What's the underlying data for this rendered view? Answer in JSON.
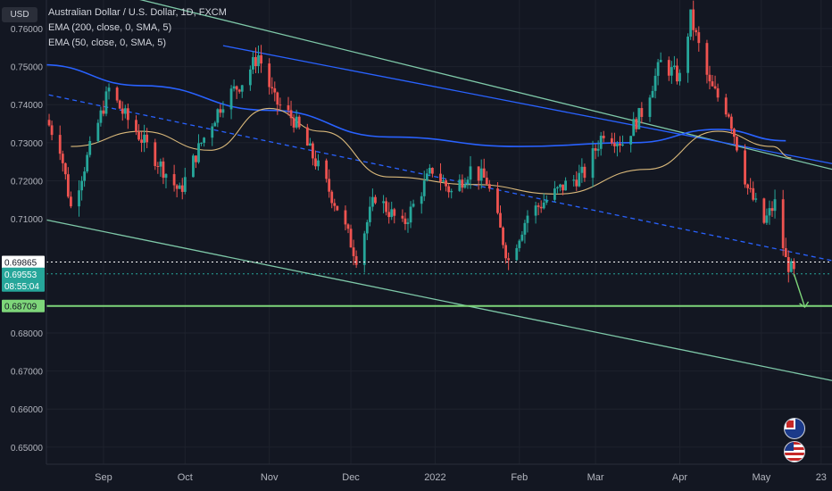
{
  "chart_title": "Australian Dollar / U.S. Dollar, 1D, FXCM",
  "indicators": {
    "ema200": "EMA (200, close, 0, SMA, 5)",
    "ema50": "EMA (50, close, 0, SMA, 5)"
  },
  "unit_badge": "USD",
  "price_tags": {
    "level1": "0.69865",
    "current": "0.69553",
    "countdown": "08:55:04",
    "support": "0.68709"
  },
  "colors": {
    "background": "#131722",
    "up": "#26a69a",
    "down": "#ef5350",
    "ema200": "#2962ff",
    "ema50": "#d9b87a",
    "channel": "#7ec8a8",
    "support_line": "#7ed67a",
    "axis_text": "#b2b5be",
    "grid": "#1e222d"
  },
  "chart_data": {
    "type": "candlestick",
    "title": "Australian Dollar / U.S. Dollar, 1D, FXCM",
    "x_ticks": [
      "Sep",
      "Oct",
      "Nov",
      "Dec",
      "2022",
      "Feb",
      "Mar",
      "Apr",
      "May",
      "23"
    ],
    "y_ticks": [
      "0.76000",
      "0.75000",
      "0.74000",
      "0.73000",
      "0.72000",
      "0.71000",
      "0.68000",
      "0.67000",
      "0.66000",
      "0.65000"
    ],
    "ylim": [
      0.6455,
      0.7675
    ],
    "x_range": [
      "2021-08-11",
      "2022-05-27"
    ],
    "approx_closes": [
      [
        "2021-08-11",
        0.736
      ],
      [
        "2021-08-16",
        0.729
      ],
      [
        "2021-08-20",
        0.713
      ],
      [
        "2021-08-26",
        0.726
      ],
      [
        "2021-09-03",
        0.744
      ],
      [
        "2021-09-08",
        0.738
      ],
      [
        "2021-09-17",
        0.729
      ],
      [
        "2021-09-29",
        0.717
      ],
      [
        "2021-10-07",
        0.73
      ],
      [
        "2021-10-15",
        0.741
      ],
      [
        "2021-10-22",
        0.746
      ],
      [
        "2021-10-28",
        0.753
      ],
      [
        "2021-11-03",
        0.741
      ],
      [
        "2021-11-10",
        0.736
      ],
      [
        "2021-11-18",
        0.725
      ],
      [
        "2021-11-26",
        0.713
      ],
      [
        "2021-12-03",
        0.7
      ],
      [
        "2021-12-10",
        0.716
      ],
      [
        "2021-12-20",
        0.708
      ],
      [
        "2021-12-31",
        0.723
      ],
      [
        "2022-01-07",
        0.717
      ],
      [
        "2022-01-14",
        0.723
      ],
      [
        "2022-01-20",
        0.72
      ],
      [
        "2022-01-28",
        0.699
      ],
      [
        "2022-02-04",
        0.711
      ],
      [
        "2022-02-11",
        0.715
      ],
      [
        "2022-02-18",
        0.719
      ],
      [
        "2022-02-25",
        0.722
      ],
      [
        "2022-03-04",
        0.733
      ],
      [
        "2022-03-11",
        0.73
      ],
      [
        "2022-03-18",
        0.738
      ],
      [
        "2022-03-25",
        0.751
      ],
      [
        "2022-04-01",
        0.747
      ],
      [
        "2022-04-05",
        0.763
      ],
      [
        "2022-04-12",
        0.745
      ],
      [
        "2022-04-19",
        0.738
      ],
      [
        "2022-04-26",
        0.718
      ],
      [
        "2022-05-02",
        0.709
      ],
      [
        "2022-05-06",
        0.714
      ],
      [
        "2022-05-10",
        0.699
      ],
      [
        "2022-05-13",
        0.6955
      ]
    ],
    "ema200_points": [
      [
        "2021-08-09",
        0.7505
      ],
      [
        "2021-09-15",
        0.745
      ],
      [
        "2021-11-01",
        0.7385
      ],
      [
        "2021-12-15",
        0.7315
      ],
      [
        "2022-02-01",
        0.729
      ],
      [
        "2022-03-15",
        0.73
      ],
      [
        "2022-04-15",
        0.7335
      ],
      [
        "2022-05-10",
        0.7305
      ]
    ],
    "ema50_points": [
      [
        "2021-08-20",
        0.729
      ],
      [
        "2021-09-15",
        0.733
      ],
      [
        "2021-10-10",
        0.728
      ],
      [
        "2021-11-01",
        0.739
      ],
      [
        "2021-11-20",
        0.733
      ],
      [
        "2021-12-15",
        0.721
      ],
      [
        "2022-01-15",
        0.719
      ],
      [
        "2022-02-15",
        0.7165
      ],
      [
        "2022-03-20",
        0.723
      ],
      [
        "2022-04-15",
        0.733
      ],
      [
        "2022-05-05",
        0.729
      ],
      [
        "2022-05-12",
        0.726
      ]
    ],
    "trendlines": [
      {
        "style": "solid",
        "color": "channel",
        "from": [
          "2021-08-09",
          0.774
        ],
        "to": [
          "2022-05-27",
          0.723
        ]
      },
      {
        "style": "solid",
        "color": "ema200",
        "from": [
          "2021-10-15",
          0.7555
        ],
        "to": [
          "2022-05-27",
          0.7245
        ]
      },
      {
        "style": "dashed",
        "color": "ema200",
        "from": [
          "2021-08-09",
          0.743
        ],
        "to": [
          "2022-05-27",
          0.699
        ]
      },
      {
        "style": "solid",
        "color": "channel",
        "from": [
          "2021-08-09",
          0.71
        ],
        "to": [
          "2022-05-27",
          0.6675
        ]
      }
    ],
    "horizontal_levels": [
      {
        "label": "level1",
        "value": 0.69865,
        "style": "dotted",
        "color": "#ffffff"
      },
      {
        "label": "current",
        "value": 0.69553,
        "style": "dotted",
        "color": "#26a69a"
      },
      {
        "label": "support",
        "value": 0.68709,
        "style": "solid",
        "color": "#7ed67a"
      }
    ]
  }
}
